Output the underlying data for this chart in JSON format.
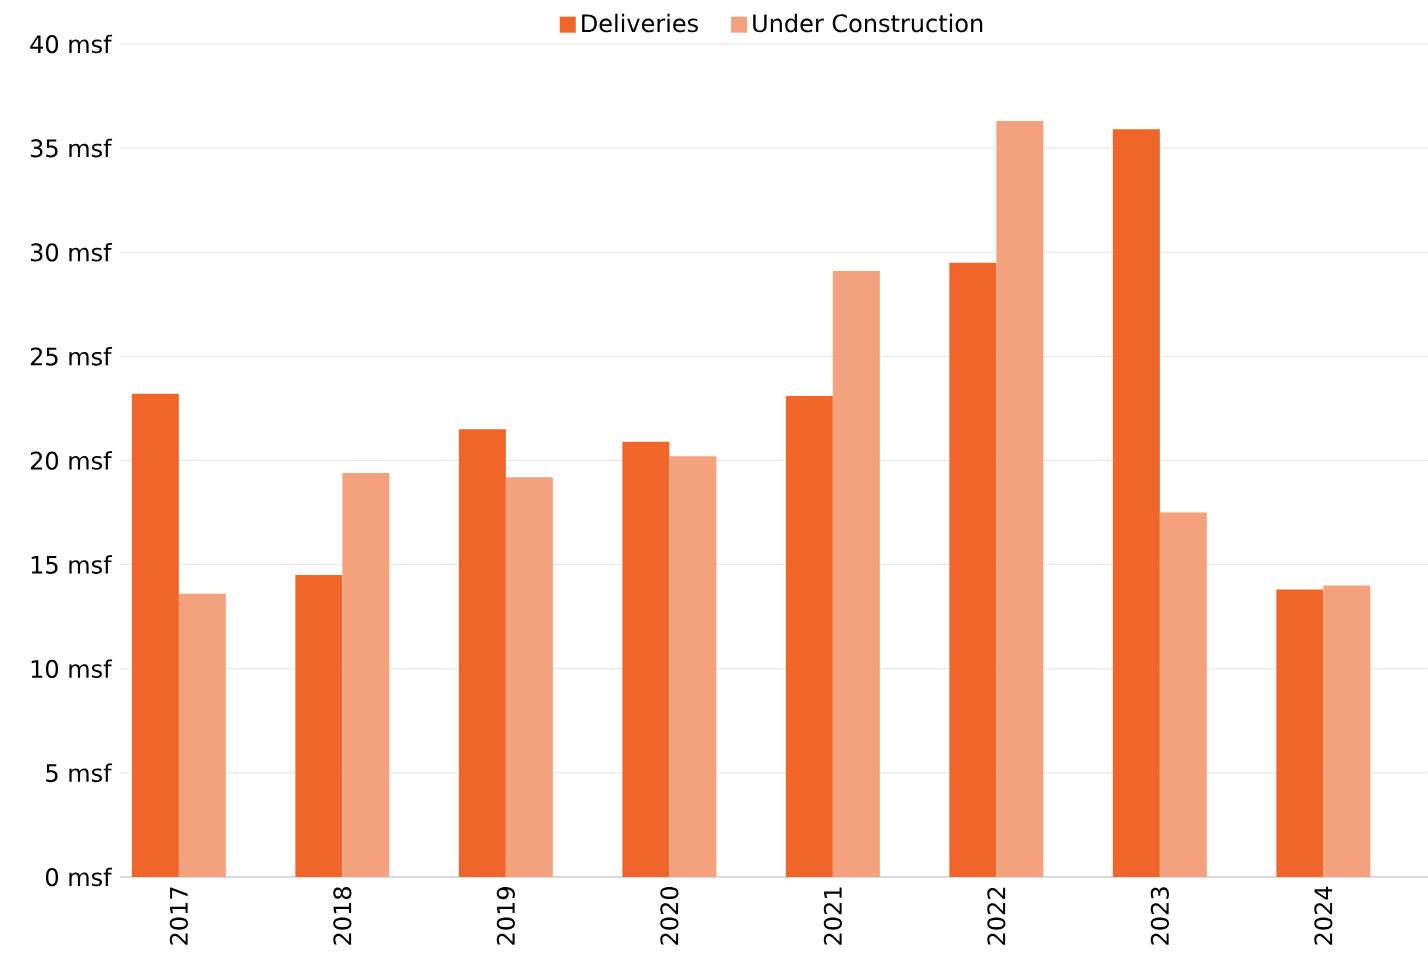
{
  "chart_data": {
    "type": "bar",
    "categories": [
      "2017",
      "2018",
      "2019",
      "2020",
      "2021",
      "2022",
      "2023",
      "2024"
    ],
    "series": [
      {
        "name": "Deliveries",
        "color": "#f0662a",
        "values": [
          23.2,
          14.5,
          21.5,
          20.9,
          23.1,
          29.5,
          35.9,
          13.8
        ]
      },
      {
        "name": "Under Construction",
        "color": "#f4a27e",
        "values": [
          13.6,
          19.4,
          19.2,
          20.2,
          29.1,
          36.3,
          17.5,
          14.0
        ]
      }
    ],
    "ylim": [
      0,
      40
    ],
    "yticks": [
      {
        "value": 0,
        "label": "0 msf"
      },
      {
        "value": 5,
        "label": "5 msf"
      },
      {
        "value": 10,
        "label": "10 msf"
      },
      {
        "value": 15,
        "label": "15 msf"
      },
      {
        "value": 20,
        "label": "20 msf"
      },
      {
        "value": 25,
        "label": "25 msf"
      },
      {
        "value": 30,
        "label": "30 msf"
      },
      {
        "value": 35,
        "label": "35 msf"
      },
      {
        "value": 40,
        "label": "40 msf"
      }
    ],
    "grid": "y",
    "legend": "top"
  }
}
